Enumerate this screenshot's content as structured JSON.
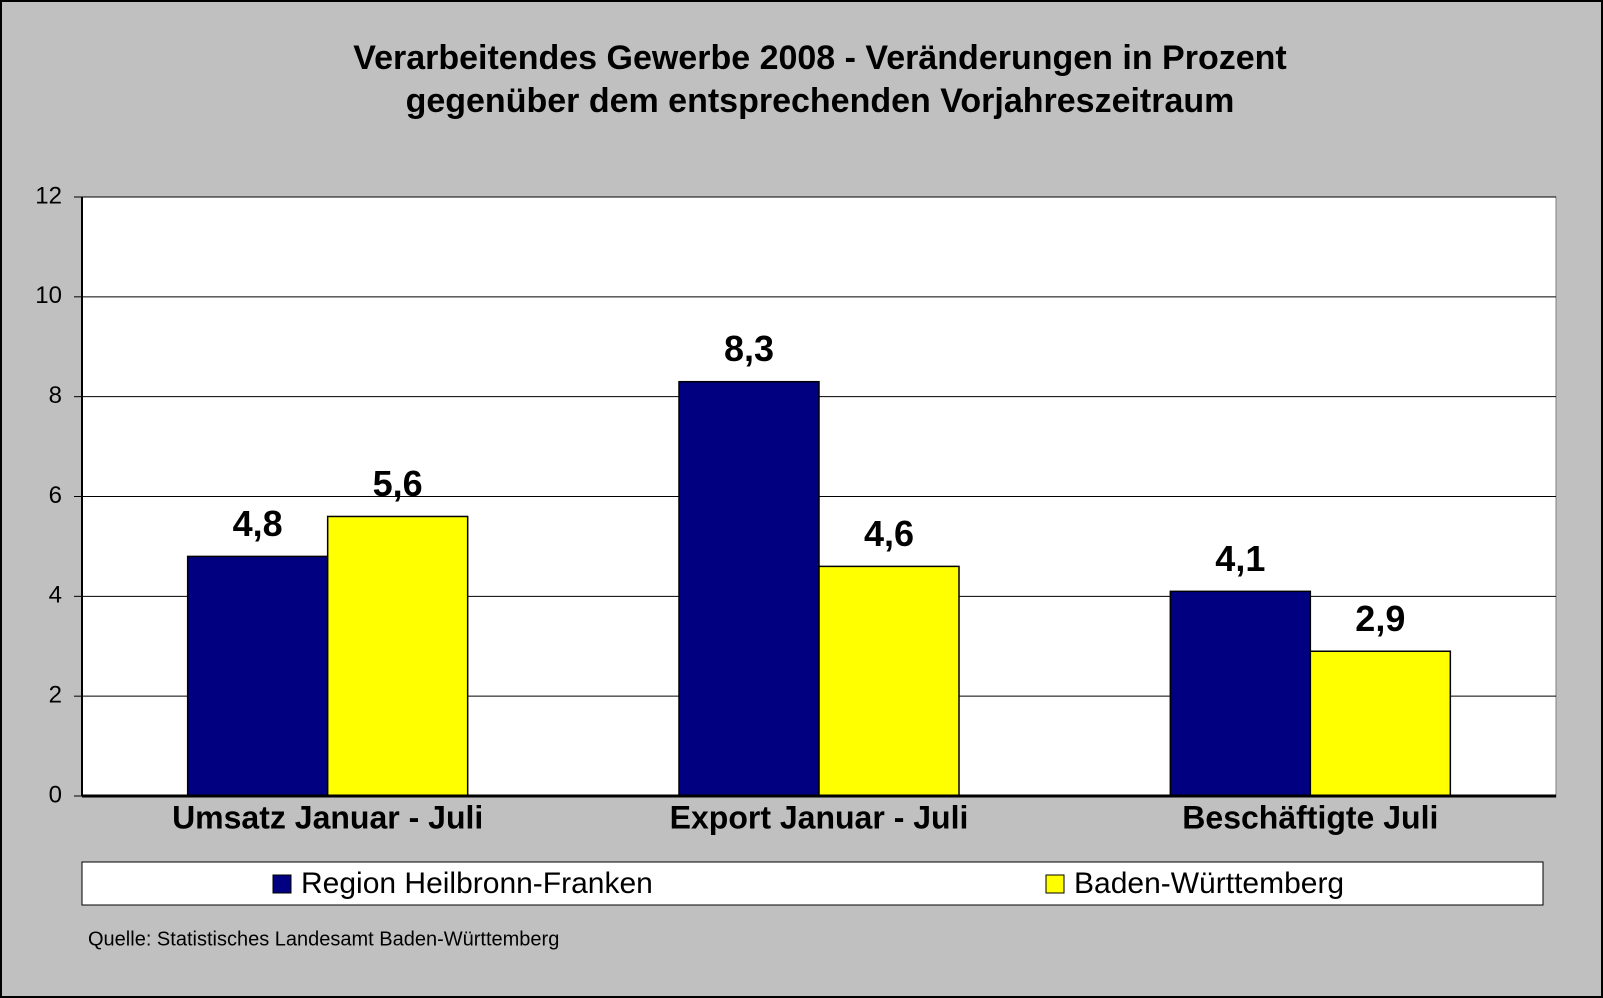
{
  "chart_data": {
    "type": "bar",
    "title": [
      "Verarbeitendes Gewerbe 2008 - Veränderungen in Prozent",
      "gegenüber dem entsprechenden Vorjahreszeitraum"
    ],
    "categories": [
      "Umsatz Januar - Juli",
      "Export Januar - Juli",
      "Beschäftigte Juli"
    ],
    "series": [
      {
        "name": "Region Heilbronn-Franken",
        "color": "#000080",
        "values": [
          4.8,
          8.3,
          4.1
        ],
        "value_labels": [
          "4,8",
          "8,3",
          "4,1"
        ]
      },
      {
        "name": "Baden-Württemberg",
        "color": "#ffff00",
        "values": [
          5.6,
          4.6,
          2.9
        ],
        "value_labels": [
          "5,6",
          "4,6",
          "2,9"
        ]
      }
    ],
    "ylim": [
      0,
      12
    ],
    "yticks": [
      0,
      2,
      4,
      6,
      8,
      10,
      12
    ],
    "grid": true,
    "legend": "bottom",
    "source": "Quelle: Statistisches Landesamt Baden-Württemberg"
  }
}
